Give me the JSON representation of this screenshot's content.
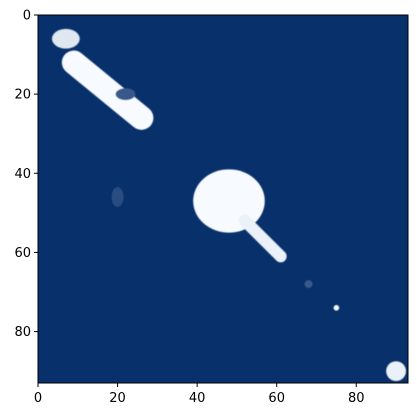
{
  "chart_data": {
    "type": "heatmap",
    "title": "",
    "xlabel": "",
    "ylabel": "",
    "colormap": "Blues",
    "grid": "off",
    "legend": "none",
    "xlim": [
      0,
      93
    ],
    "ylim": [
      93,
      0
    ],
    "x_ticks": [
      0,
      20,
      40,
      60,
      80
    ],
    "y_ticks": [
      0,
      20,
      40,
      60,
      80
    ],
    "value_range": [
      0,
      1
    ],
    "colors": {
      "background": "#08306b",
      "peak": "#f7fbff"
    },
    "blobs": [
      {
        "name": "upper-left-cluster",
        "cx": 7,
        "cy": 6,
        "rx": 3.5,
        "ry": 2.5,
        "value": 0.9
      },
      {
        "name": "diagonal-streak",
        "x0": 9,
        "y0": 12,
        "x1": 26,
        "y1": 26,
        "width": 6,
        "value": 1.0
      },
      {
        "name": "central-cluster-body",
        "cx": 48,
        "cy": 47,
        "rx": 9,
        "ry": 8,
        "value": 1.0
      },
      {
        "name": "central-cluster-tail",
        "x0": 52,
        "y0": 52,
        "x1": 61,
        "y1": 61,
        "width": 3,
        "value": 0.95
      },
      {
        "name": "faint-spot-a",
        "cx": 22,
        "cy": 20,
        "rx": 2.5,
        "ry": 1.5,
        "value": 0.2
      },
      {
        "name": "faint-spot-b",
        "cx": 20,
        "cy": 46,
        "rx": 1.5,
        "ry": 2.5,
        "value": 0.15
      },
      {
        "name": "faint-spot-c",
        "cx": 68,
        "cy": 68,
        "rx": 1,
        "ry": 1,
        "value": 0.2
      },
      {
        "name": "small-spot",
        "cx": 75,
        "cy": 74,
        "rx": 0.7,
        "ry": 0.7,
        "value": 1.0
      },
      {
        "name": "lower-right-cluster",
        "cx": 90,
        "cy": 90,
        "rx": 2.5,
        "ry": 2.5,
        "value": 0.95
      }
    ]
  }
}
